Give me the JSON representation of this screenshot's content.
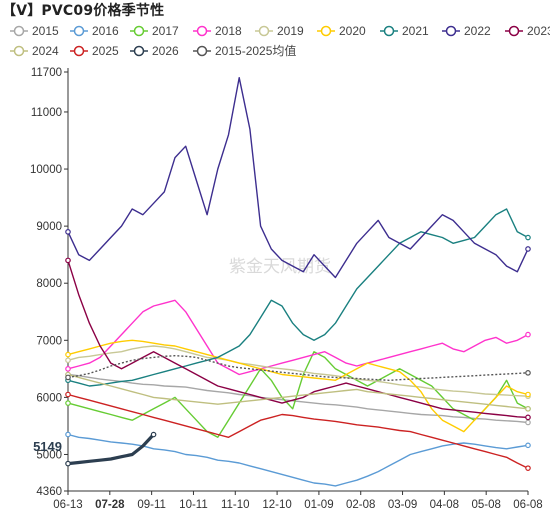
{
  "title": "【V】PVC09价格季节性",
  "watermark": "紫金天风期货",
  "chart_data": {
    "type": "line",
    "title": "【V】PVC09价格季节性",
    "y_ticks": [
      4360,
      5000,
      6000,
      7000,
      8000,
      9000,
      10000,
      11000,
      11700
    ],
    "ylim": [
      4360,
      11700
    ],
    "x_ticks": [
      "06-13",
      "07-28",
      "09-11",
      "10-11",
      "11-10",
      "12-10",
      "01-09",
      "02-08",
      "03-09",
      "04-08",
      "05-08",
      "06-08"
    ],
    "highlight_x_label": "07-28",
    "current_value_label": "5149",
    "grid": false,
    "legend_position": "top",
    "series": [
      {
        "name": "2015",
        "color": "#a7a7a7",
        "marker": "circle",
        "values": [
          6400,
          6380,
          6350,
          6320,
          6300,
          6280,
          6250,
          6230,
          6220,
          6200,
          6190,
          6180,
          6150,
          6120,
          6100,
          6080,
          6050,
          6030,
          6000,
          5980,
          5960,
          5940,
          5920,
          5900,
          5880,
          5870,
          5850,
          5830,
          5800,
          5780,
          5760,
          5740,
          5720,
          5700,
          5690,
          5680,
          5660,
          5650,
          5630,
          5620,
          5600,
          5590,
          5580,
          5560
        ]
      },
      {
        "name": "2016",
        "color": "#5b9bd5",
        "marker": "circle",
        "values": [
          5350,
          5300,
          5280,
          5250,
          5220,
          5200,
          5180,
          5150,
          5100,
          5080,
          5050,
          5000,
          4980,
          4950,
          4900,
          4880,
          4850,
          4800,
          4750,
          4700,
          4650,
          4600,
          4550,
          4500,
          4480,
          4450,
          4500,
          4550,
          4620,
          4700,
          4800,
          4900,
          5000,
          5050,
          5100,
          5150,
          5180,
          5200,
          5180,
          5150,
          5120,
          5100,
          5130,
          5160
        ]
      },
      {
        "name": "2017",
        "color": "#66cc33",
        "marker": "circle",
        "values": [
          5900,
          5850,
          5800,
          5750,
          5700,
          5650,
          5600,
          5700,
          5800,
          5900,
          6000,
          5800,
          5600,
          5400,
          5300,
          5600,
          5900,
          6200,
          6500,
          6300,
          6000,
          5800,
          6400,
          6800,
          6700,
          6500,
          6400,
          6300,
          6200,
          6300,
          6400,
          6500,
          6400,
          6300,
          6200,
          6000,
          5800,
          5700,
          5600,
          5800,
          6000,
          6300,
          5900,
          5800
        ]
      },
      {
        "name": "2018",
        "color": "#ff33cc",
        "marker": "circle",
        "values": [
          6500,
          6550,
          6600,
          6700,
          6900,
          7100,
          7300,
          7500,
          7600,
          7650,
          7700,
          7500,
          7200,
          6900,
          6600,
          6500,
          6400,
          6450,
          6500,
          6550,
          6600,
          6650,
          6700,
          6750,
          6800,
          6700,
          6600,
          6550,
          6600,
          6650,
          6700,
          6750,
          6800,
          6850,
          6900,
          6950,
          6850,
          6800,
          6900,
          7000,
          7050,
          6950,
          7000,
          7100
        ]
      },
      {
        "name": "2019",
        "color": "#c8c896",
        "marker": "circle",
        "values": [
          6650,
          6700,
          6720,
          6750,
          6780,
          6800,
          6850,
          6880,
          6900,
          6880,
          6850,
          6800,
          6750,
          6700,
          6680,
          6650,
          6600,
          6580,
          6550,
          6520,
          6500,
          6480,
          6450,
          6420,
          6400,
          6380,
          6350,
          6320,
          6300,
          6280,
          6250,
          6220,
          6200,
          6180,
          6150,
          6130,
          6110,
          6100,
          6080,
          6060,
          6050,
          6040,
          6030,
          6020
        ]
      },
      {
        "name": "2020",
        "color": "#ffcc00",
        "marker": "circle",
        "values": [
          6750,
          6800,
          6850,
          6900,
          6950,
          6980,
          7000,
          6980,
          6950,
          6920,
          6900,
          6850,
          6800,
          6750,
          6700,
          6650,
          6600,
          6550,
          6500,
          6450,
          6400,
          6380,
          6360,
          6340,
          6320,
          6300,
          6400,
          6500,
          6600,
          6550,
          6500,
          6450,
          6300,
          6100,
          5800,
          5600,
          5500,
          5400,
          5600,
          5800,
          6000,
          6200,
          6100,
          6050
        ]
      },
      {
        "name": "2021",
        "color": "#1a8080",
        "marker": "circle",
        "values": [
          6300,
          6250,
          6200,
          6220,
          6250,
          6280,
          6300,
          6350,
          6400,
          6450,
          6500,
          6550,
          6600,
          6650,
          6700,
          6800,
          6900,
          7100,
          7400,
          7700,
          7600,
          7300,
          7100,
          7000,
          7100,
          7300,
          7600,
          7900,
          8100,
          8300,
          8500,
          8700,
          8800,
          8900,
          8850,
          8800,
          8700,
          8750,
          8800,
          9000,
          9200,
          9300,
          8900,
          8800
        ]
      },
      {
        "name": "2022",
        "color": "#3d2e8f",
        "marker": "circle",
        "values": [
          8900,
          8500,
          8400,
          8600,
          8800,
          9000,
          9300,
          9200,
          9400,
          9600,
          10200,
          10400,
          9800,
          9200,
          10000,
          10600,
          11600,
          10700,
          9000,
          8600,
          8400,
          8300,
          8200,
          8500,
          8300,
          8100,
          8400,
          8700,
          8900,
          9100,
          8800,
          8700,
          8600,
          8800,
          9000,
          9200,
          9100,
          8900,
          8700,
          8600,
          8500,
          8300,
          8200,
          8600
        ]
      },
      {
        "name": "2023",
        "color": "#8b0045",
        "marker": "circle",
        "values": [
          8400,
          7800,
          7300,
          6900,
          6600,
          6500,
          6600,
          6700,
          6800,
          6700,
          6600,
          6500,
          6400,
          6300,
          6200,
          6150,
          6100,
          6050,
          6000,
          5950,
          5900,
          5950,
          6000,
          6100,
          6150,
          6200,
          6250,
          6200,
          6150,
          6100,
          6050,
          6000,
          5950,
          5900,
          5850,
          5800,
          5780,
          5760,
          5740,
          5720,
          5700,
          5680,
          5660,
          5650
        ]
      },
      {
        "name": "2024",
        "color": "#bfbf80",
        "marker": "circle",
        "values": [
          6400,
          6350,
          6300,
          6250,
          6200,
          6150,
          6100,
          6050,
          6000,
          5980,
          5960,
          5940,
          5920,
          5900,
          5880,
          5900,
          5920,
          5940,
          5960,
          5980,
          6000,
          6020,
          6040,
          6060,
          6080,
          6100,
          6120,
          6140,
          6100,
          6080,
          6060,
          6040,
          6020,
          6000,
          5980,
          5960,
          5940,
          5920,
          5900,
          5880,
          5860,
          5840,
          5820,
          5800
        ]
      },
      {
        "name": "2025",
        "color": "#cc2222",
        "marker": "circle",
        "values": [
          6050,
          6000,
          5950,
          5900,
          5850,
          5800,
          5750,
          5700,
          5650,
          5600,
          5550,
          5500,
          5450,
          5400,
          5350,
          5300,
          5400,
          5500,
          5600,
          5650,
          5700,
          5680,
          5650,
          5620,
          5600,
          5580,
          5550,
          5520,
          5500,
          5480,
          5450,
          5420,
          5400,
          5350,
          5300,
          5250,
          5200,
          5150,
          5100,
          5050,
          5000,
          4950,
          4850,
          4760
        ]
      },
      {
        "name": "2026",
        "color": "#2c3e50",
        "marker": "circle",
        "values": [
          4840,
          4860,
          4880,
          4900,
          4920,
          4960,
          5000,
          5149,
          5349,
          null,
          null,
          null,
          null,
          null,
          null,
          null,
          null,
          null,
          null,
          null,
          null,
          null,
          null,
          null,
          null,
          null,
          null,
          null,
          null,
          null,
          null,
          null,
          null,
          null,
          null,
          null,
          null,
          null,
          null,
          null,
          null,
          null,
          null,
          null
        ]
      },
      {
        "name": "2015-2025均值",
        "color": "#555555",
        "marker": "circle",
        "dashed": true,
        "values": [
          6350,
          6380,
          6420,
          6480,
          6550,
          6600,
          6650,
          6680,
          6700,
          6720,
          6730,
          6720,
          6700,
          6650,
          6600,
          6550,
          6520,
          6500,
          6480,
          6460,
          6440,
          6420,
          6400,
          6380,
          6360,
          6350,
          6340,
          6330,
          6320,
          6310,
          6300,
          6310,
          6320,
          6330,
          6340,
          6350,
          6360,
          6370,
          6380,
          6390,
          6400,
          6410,
          6420,
          6430
        ]
      }
    ]
  }
}
